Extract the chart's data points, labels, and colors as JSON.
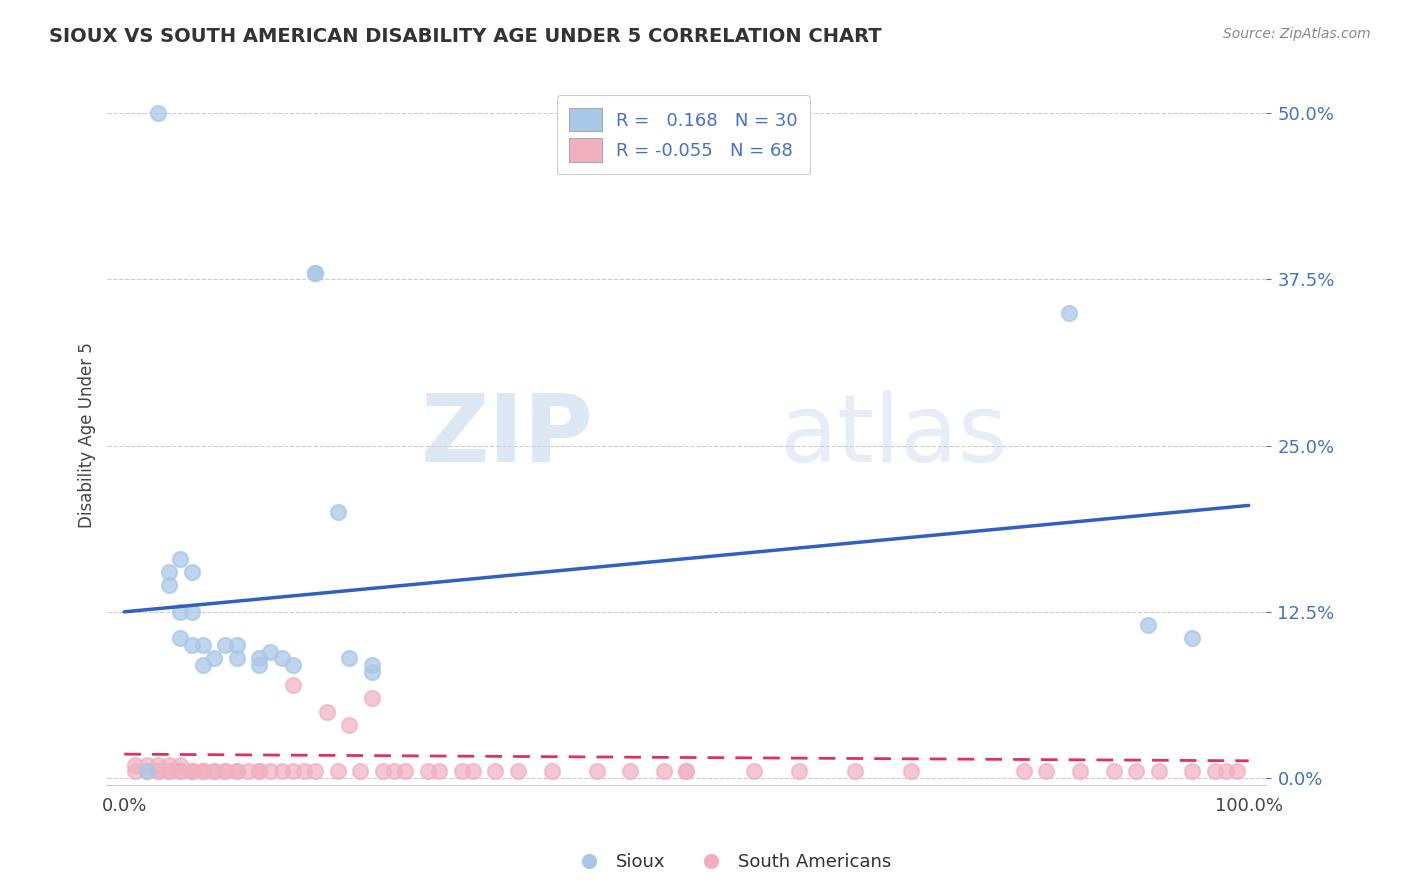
{
  "title": "SIOUX VS SOUTH AMERICAN DISABILITY AGE UNDER 5 CORRELATION CHART",
  "source": "Source: ZipAtlas.com",
  "ylabel": "Disability Age Under 5",
  "xlim": [
    0,
    1.0
  ],
  "ylim": [
    0,
    0.5
  ],
  "xtick_labels": [
    "0.0%",
    "100.0%"
  ],
  "ytick_labels": [
    "0.0%",
    "12.5%",
    "25.0%",
    "37.5%",
    "50.0%"
  ],
  "ytick_values": [
    0.0,
    0.125,
    0.25,
    0.375,
    0.5
  ],
  "xtick_values": [
    0.0,
    1.0
  ],
  "background_color": "#ffffff",
  "grid_color": "#cccccc",
  "sioux_color": "#a8c8e8",
  "south_american_color": "#f0b0c0",
  "sioux_line_color": "#3060c0",
  "south_american_line_color": "#e03060",
  "R_sioux": 0.168,
  "N_sioux": 30,
  "R_south_american": -0.055,
  "N_south_american": 68,
  "legend_label_sioux": "Sioux",
  "legend_label_south_american": "South Americans",
  "sioux_points_x": [
    0.02,
    0.03,
    0.04,
    0.04,
    0.05,
    0.05,
    0.05,
    0.06,
    0.06,
    0.06,
    0.07,
    0.07,
    0.08,
    0.09,
    0.1,
    0.1,
    0.12,
    0.12,
    0.13,
    0.14,
    0.15,
    0.17,
    0.17,
    0.19,
    0.2,
    0.22,
    0.22,
    0.84,
    0.91,
    0.95
  ],
  "sioux_points_y": [
    0.005,
    0.5,
    0.145,
    0.155,
    0.105,
    0.125,
    0.165,
    0.1,
    0.125,
    0.155,
    0.085,
    0.1,
    0.09,
    0.1,
    0.09,
    0.1,
    0.085,
    0.09,
    0.095,
    0.09,
    0.085,
    0.38,
    0.38,
    0.2,
    0.09,
    0.08,
    0.085,
    0.35,
    0.115,
    0.105
  ],
  "south_american_points_x": [
    0.01,
    0.01,
    0.02,
    0.02,
    0.03,
    0.03,
    0.03,
    0.04,
    0.04,
    0.04,
    0.05,
    0.05,
    0.05,
    0.06,
    0.06,
    0.06,
    0.07,
    0.07,
    0.07,
    0.08,
    0.08,
    0.09,
    0.09,
    0.1,
    0.1,
    0.11,
    0.12,
    0.12,
    0.13,
    0.14,
    0.15,
    0.15,
    0.16,
    0.17,
    0.18,
    0.19,
    0.2,
    0.21,
    0.22,
    0.23,
    0.24,
    0.25,
    0.27,
    0.28,
    0.3,
    0.31,
    0.33,
    0.35,
    0.38,
    0.42,
    0.45,
    0.48,
    0.5,
    0.5,
    0.56,
    0.6,
    0.65,
    0.7,
    0.8,
    0.82,
    0.85,
    0.88,
    0.9,
    0.92,
    0.95,
    0.97,
    0.98,
    0.99
  ],
  "south_american_points_y": [
    0.005,
    0.01,
    0.005,
    0.01,
    0.005,
    0.005,
    0.01,
    0.005,
    0.005,
    0.01,
    0.005,
    0.005,
    0.01,
    0.005,
    0.005,
    0.005,
    0.005,
    0.005,
    0.005,
    0.005,
    0.005,
    0.005,
    0.005,
    0.005,
    0.005,
    0.005,
    0.005,
    0.005,
    0.005,
    0.005,
    0.005,
    0.07,
    0.005,
    0.005,
    0.05,
    0.005,
    0.04,
    0.005,
    0.06,
    0.005,
    0.005,
    0.005,
    0.005,
    0.005,
    0.005,
    0.005,
    0.005,
    0.005,
    0.005,
    0.005,
    0.005,
    0.005,
    0.005,
    0.005,
    0.005,
    0.005,
    0.005,
    0.005,
    0.005,
    0.005,
    0.005,
    0.005,
    0.005,
    0.005,
    0.005,
    0.005,
    0.005,
    0.005
  ],
  "sioux_trendline_x0": 0.0,
  "sioux_trendline_y0": 0.125,
  "sioux_trendline_x1": 1.0,
  "sioux_trendline_y1": 0.205,
  "sa_trendline_x0": 0.0,
  "sa_trendline_y0": 0.018,
  "sa_trendline_x1": 1.0,
  "sa_trendline_y1": 0.013,
  "watermark_zip": "ZIP",
  "watermark_atlas": "atlas",
  "marker_size": 120
}
